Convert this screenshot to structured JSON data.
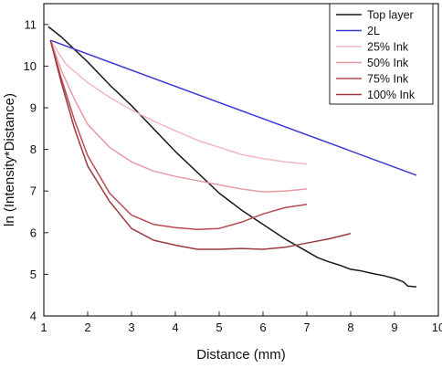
{
  "chart_data": {
    "type": "line",
    "title": "",
    "xlabel": "Distance (mm)",
    "ylabel": "ln (Intensity*Distance)",
    "xlim": [
      1,
      10
    ],
    "ylim": [
      4,
      11.5
    ],
    "xticks": [
      "1",
      "2",
      "3",
      "4",
      "5",
      "6",
      "7",
      "8",
      "9",
      "10"
    ],
    "yticks": [
      "4",
      "5",
      "6",
      "7",
      "8",
      "9",
      "10",
      "11"
    ],
    "grid": false,
    "legend_position": "top-right",
    "series": [
      {
        "name": "Top layer",
        "color": "#1a1a1a",
        "points": [
          [
            1.1,
            10.95
          ],
          [
            1.4,
            10.7
          ],
          [
            1.7,
            10.4
          ],
          [
            2.0,
            10.1
          ],
          [
            2.5,
            9.55
          ],
          [
            3.0,
            9.05
          ],
          [
            3.5,
            8.5
          ],
          [
            4.0,
            7.95
          ],
          [
            4.5,
            7.45
          ],
          [
            5.0,
            6.95
          ],
          [
            5.5,
            6.55
          ],
          [
            6.0,
            6.2
          ],
          [
            6.5,
            5.85
          ],
          [
            7.0,
            5.55
          ],
          [
            7.25,
            5.4
          ],
          [
            7.5,
            5.3
          ],
          [
            7.75,
            5.22
          ],
          [
            8.0,
            5.12
          ],
          [
            8.25,
            5.08
          ],
          [
            8.5,
            5.02
          ],
          [
            8.75,
            4.97
          ],
          [
            9.0,
            4.9
          ],
          [
            9.2,
            4.82
          ],
          [
            9.3,
            4.72
          ],
          [
            9.5,
            4.7
          ]
        ]
      },
      {
        "name": "2L",
        "color": "#3a3ad6",
        "points": [
          [
            1.15,
            10.62
          ],
          [
            9.5,
            7.38
          ]
        ]
      },
      {
        "name": "25% Ink",
        "color": "#f2b8c0",
        "points": [
          [
            1.15,
            10.62
          ],
          [
            1.5,
            10.05
          ],
          [
            2.0,
            9.6
          ],
          [
            2.5,
            9.25
          ],
          [
            3.0,
            8.95
          ],
          [
            3.5,
            8.68
          ],
          [
            4.0,
            8.45
          ],
          [
            4.5,
            8.22
          ],
          [
            5.0,
            8.05
          ],
          [
            5.5,
            7.88
          ],
          [
            6.0,
            7.78
          ],
          [
            6.5,
            7.7
          ],
          [
            7.0,
            7.65
          ]
        ]
      },
      {
        "name": "50% Ink",
        "color": "#e69aa4",
        "points": [
          [
            1.15,
            10.62
          ],
          [
            1.4,
            9.9
          ],
          [
            1.7,
            9.2
          ],
          [
            2.0,
            8.6
          ],
          [
            2.5,
            8.05
          ],
          [
            3.0,
            7.7
          ],
          [
            3.5,
            7.48
          ],
          [
            4.0,
            7.35
          ],
          [
            4.5,
            7.25
          ],
          [
            5.0,
            7.15
          ],
          [
            5.5,
            7.05
          ],
          [
            6.0,
            6.98
          ],
          [
            6.5,
            7.0
          ],
          [
            7.0,
            7.05
          ]
        ]
      },
      {
        "name": "75% Ink",
        "color": "#b84a52",
        "points": [
          [
            1.15,
            10.62
          ],
          [
            1.4,
            9.7
          ],
          [
            1.7,
            8.7
          ],
          [
            2.0,
            7.85
          ],
          [
            2.5,
            6.95
          ],
          [
            3.0,
            6.42
          ],
          [
            3.5,
            6.2
          ],
          [
            4.0,
            6.12
          ],
          [
            4.5,
            6.08
          ],
          [
            5.0,
            6.1
          ],
          [
            5.5,
            6.25
          ],
          [
            6.0,
            6.45
          ],
          [
            6.5,
            6.6
          ],
          [
            7.0,
            6.68
          ]
        ]
      },
      {
        "name": "100% Ink",
        "color": "#9c3a40",
        "points": [
          [
            1.15,
            10.62
          ],
          [
            1.4,
            9.6
          ],
          [
            1.7,
            8.5
          ],
          [
            2.0,
            7.6
          ],
          [
            2.5,
            6.75
          ],
          [
            3.0,
            6.1
          ],
          [
            3.5,
            5.82
          ],
          [
            4.0,
            5.7
          ],
          [
            4.5,
            5.6
          ],
          [
            5.0,
            5.6
          ],
          [
            5.5,
            5.62
          ],
          [
            6.0,
            5.6
          ],
          [
            6.5,
            5.65
          ],
          [
            7.0,
            5.75
          ],
          [
            7.5,
            5.85
          ],
          [
            8.0,
            5.98
          ]
        ]
      }
    ]
  }
}
